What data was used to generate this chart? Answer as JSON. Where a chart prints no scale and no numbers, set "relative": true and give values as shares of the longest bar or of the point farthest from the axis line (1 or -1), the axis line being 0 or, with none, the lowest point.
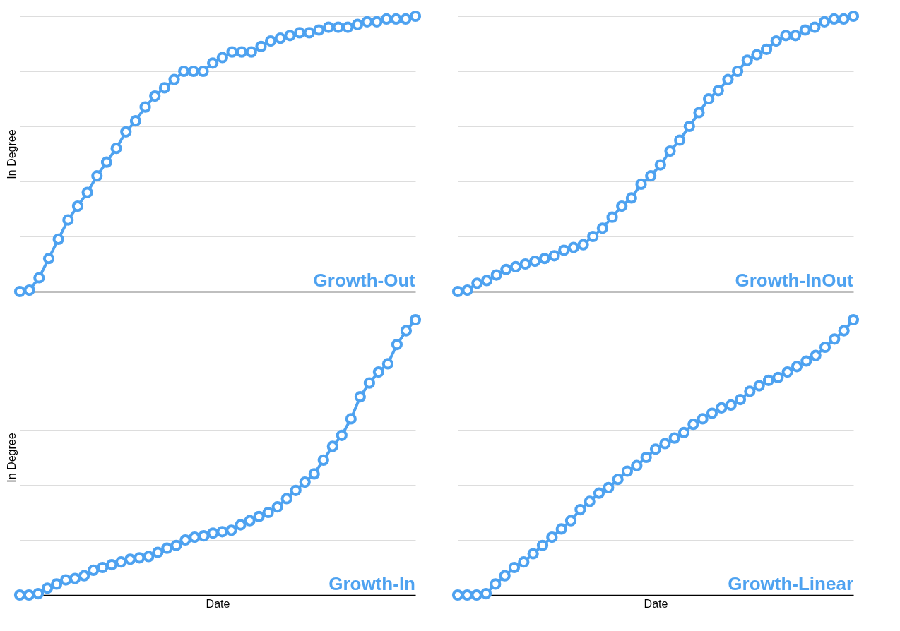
{
  "chart_data": [
    {
      "type": "line",
      "title": "Growth-Out",
      "ylabel": "In Degree",
      "relative": true,
      "marker": "circle",
      "grid": "y",
      "tick_labels": false,
      "color": "#4ea2f0",
      "categories": [
        null,
        null,
        null,
        null,
        null,
        null,
        null,
        null,
        null,
        null,
        null,
        null,
        null,
        null,
        null,
        null,
        null,
        null,
        null,
        null,
        null,
        null,
        null,
        null,
        null,
        null,
        null,
        null,
        null,
        null,
        null,
        null,
        null,
        null,
        null,
        null,
        null,
        null,
        null,
        null,
        null,
        null
      ],
      "values": [
        0,
        0.005,
        0.05,
        0.12,
        0.19,
        0.26,
        0.31,
        0.36,
        0.42,
        0.47,
        0.52,
        0.58,
        0.62,
        0.67,
        0.71,
        0.74,
        0.77,
        0.8,
        0.8,
        0.8,
        0.83,
        0.85,
        0.87,
        0.87,
        0.87,
        0.89,
        0.91,
        0.92,
        0.93,
        0.94,
        0.94,
        0.95,
        0.96,
        0.96,
        0.96,
        0.97,
        0.98,
        0.98,
        0.99,
        0.99,
        0.99,
        1
      ]
    },
    {
      "type": "line",
      "title": "Growth-InOut",
      "relative": true,
      "marker": "circle",
      "grid": "y",
      "tick_labels": false,
      "color": "#4ea2f0",
      "categories": [
        null,
        null,
        null,
        null,
        null,
        null,
        null,
        null,
        null,
        null,
        null,
        null,
        null,
        null,
        null,
        null,
        null,
        null,
        null,
        null,
        null,
        null,
        null,
        null,
        null,
        null,
        null,
        null,
        null,
        null,
        null,
        null,
        null,
        null,
        null,
        null,
        null,
        null,
        null,
        null,
        null,
        null
      ],
      "values": [
        0,
        0.005,
        0.03,
        0.04,
        0.06,
        0.08,
        0.09,
        0.1,
        0.11,
        0.12,
        0.13,
        0.15,
        0.16,
        0.17,
        0.2,
        0.23,
        0.27,
        0.31,
        0.34,
        0.39,
        0.42,
        0.46,
        0.51,
        0.55,
        0.6,
        0.65,
        0.7,
        0.73,
        0.77,
        0.8,
        0.84,
        0.86,
        0.88,
        0.91,
        0.93,
        0.93,
        0.95,
        0.96,
        0.98,
        0.99,
        0.99,
        1
      ]
    },
    {
      "type": "line",
      "title": "Growth-In",
      "xlabel": "Date",
      "ylabel": "In Degree",
      "relative": true,
      "marker": "circle",
      "grid": "y",
      "tick_labels": false,
      "color": "#4ea2f0",
      "categories": [
        null,
        null,
        null,
        null,
        null,
        null,
        null,
        null,
        null,
        null,
        null,
        null,
        null,
        null,
        null,
        null,
        null,
        null,
        null,
        null,
        null,
        null,
        null,
        null,
        null,
        null,
        null,
        null,
        null,
        null,
        null,
        null,
        null,
        null,
        null,
        null,
        null,
        null,
        null,
        null,
        null,
        null,
        null,
        null
      ],
      "values": [
        0,
        0,
        0.005,
        0.025,
        0.04,
        0.055,
        0.06,
        0.07,
        0.09,
        0.1,
        0.11,
        0.12,
        0.13,
        0.135,
        0.14,
        0.155,
        0.17,
        0.18,
        0.2,
        0.21,
        0.215,
        0.225,
        0.23,
        0.235,
        0.255,
        0.27,
        0.285,
        0.3,
        0.32,
        0.35,
        0.38,
        0.41,
        0.44,
        0.49,
        0.54,
        0.58,
        0.64,
        0.72,
        0.77,
        0.81,
        0.84,
        0.91,
        0.96,
        1
      ]
    },
    {
      "type": "line",
      "title": "Growth-Linear",
      "xlabel": "Date",
      "relative": true,
      "marker": "circle",
      "grid": "y",
      "tick_labels": false,
      "color": "#4ea2f0",
      "categories": [
        null,
        null,
        null,
        null,
        null,
        null,
        null,
        null,
        null,
        null,
        null,
        null,
        null,
        null,
        null,
        null,
        null,
        null,
        null,
        null,
        null,
        null,
        null,
        null,
        null,
        null,
        null,
        null,
        null,
        null,
        null,
        null,
        null,
        null,
        null,
        null,
        null,
        null,
        null,
        null,
        null,
        null,
        null
      ],
      "values": [
        0,
        0,
        0,
        0.005,
        0.04,
        0.07,
        0.1,
        0.12,
        0.15,
        0.18,
        0.21,
        0.24,
        0.27,
        0.31,
        0.34,
        0.37,
        0.39,
        0.42,
        0.45,
        0.47,
        0.5,
        0.53,
        0.55,
        0.57,
        0.59,
        0.62,
        0.64,
        0.66,
        0.68,
        0.69,
        0.71,
        0.74,
        0.76,
        0.78,
        0.79,
        0.81,
        0.83,
        0.85,
        0.87,
        0.9,
        0.93,
        0.96,
        1
      ]
    }
  ]
}
